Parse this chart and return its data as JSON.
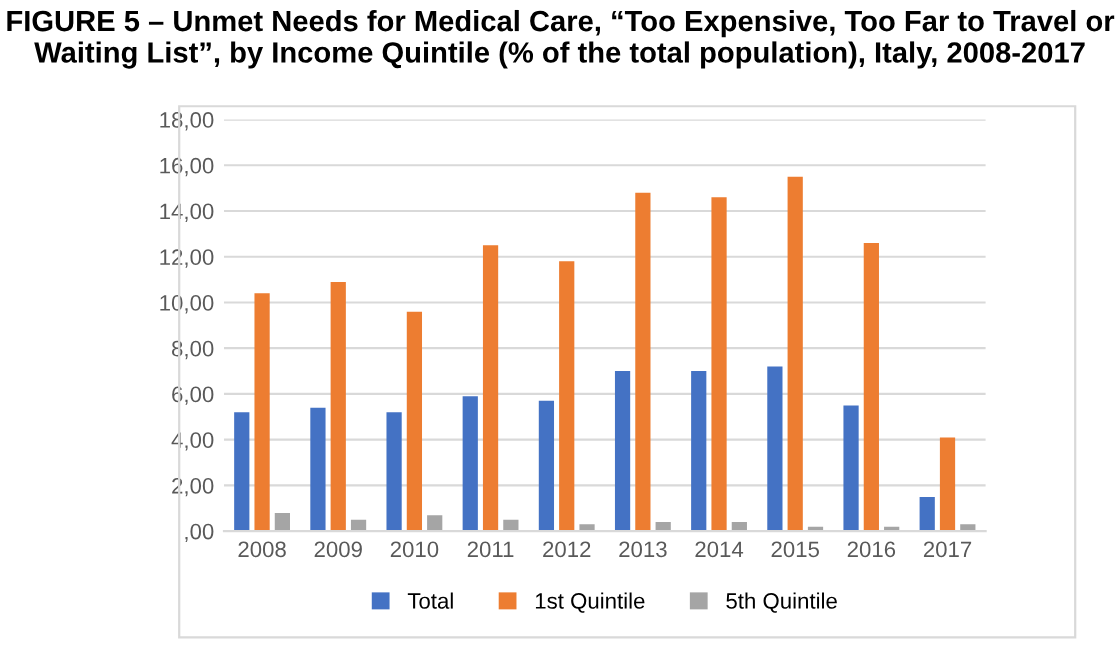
{
  "chart_data": {
    "type": "bar",
    "title": "FIGURE 5 – Unmet Needs for Medical Care, “Too Expensive, Too Far to Travel or Waiting List”, by Income Quintile (% of the total population), Italy, 2008-2017",
    "categories": [
      "2008",
      "2009",
      "2010",
      "2011",
      "2012",
      "2013",
      "2014",
      "2015",
      "2016",
      "2017"
    ],
    "series": [
      {
        "name": "Total",
        "color": "#4472c4",
        "values": [
          5.2,
          5.4,
          5.2,
          5.9,
          5.7,
          7.0,
          7.0,
          7.2,
          5.5,
          1.5
        ]
      },
      {
        "name": "1st Quintile",
        "color": "#ed7d31",
        "values": [
          10.4,
          10.9,
          9.6,
          12.5,
          11.8,
          14.8,
          14.6,
          15.5,
          12.6,
          4.1
        ]
      },
      {
        "name": "5th Quintile",
        "color": "#a5a5a5",
        "values": [
          0.8,
          0.5,
          0.7,
          0.5,
          0.3,
          0.4,
          0.4,
          0.2,
          0.2,
          0.3
        ]
      }
    ],
    "ylim": [
      0,
      18
    ],
    "yticks": [
      {
        "value": 0,
        "label": ",00"
      },
      {
        "value": 2,
        "label": "2,00"
      },
      {
        "value": 4,
        "label": "4,00"
      },
      {
        "value": 6,
        "label": "6,00"
      },
      {
        "value": 8,
        "label": "8,00"
      },
      {
        "value": 10,
        "label": "10,00"
      },
      {
        "value": 12,
        "label": "12,00"
      },
      {
        "value": 14,
        "label": "14,00"
      },
      {
        "value": 16,
        "label": "16,00"
      },
      {
        "value": 18,
        "label": "18,00"
      }
    ],
    "grid": "y",
    "legend": "bottom"
  }
}
